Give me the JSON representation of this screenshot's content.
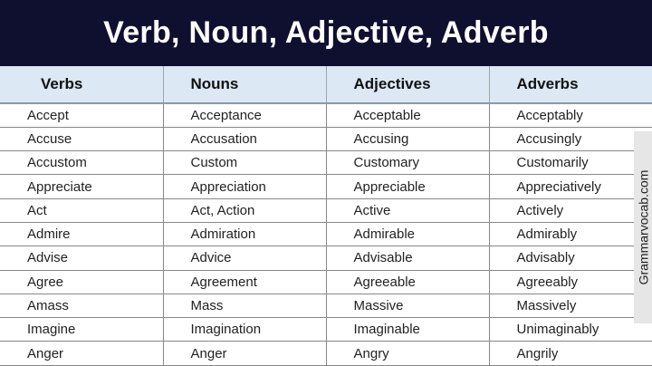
{
  "title": "Verb, Noun, Adjective, Adverb",
  "headers": [
    "Verbs",
    "Nouns",
    "Adjectives",
    "Adverbs"
  ],
  "rows": [
    [
      "Accept",
      "Acceptance",
      "Acceptable",
      "Acceptably"
    ],
    [
      "Accuse",
      "Accusation",
      "Accusing",
      "Accusingly"
    ],
    [
      "Accustom",
      "Custom",
      "Customary",
      "Customarily"
    ],
    [
      "Appreciate",
      "Appreciation",
      "Appreciable",
      "Appreciatively"
    ],
    [
      "Act",
      "Act, Action",
      "Active",
      "Actively"
    ],
    [
      "Admire",
      "Admiration",
      "Admirable",
      "Admirably"
    ],
    [
      "Advise",
      "Advice",
      "Advisable",
      "Advisably"
    ],
    [
      "Agree",
      "Agreement",
      "Agreeable",
      "Agreeably"
    ],
    [
      "Amass",
      "Mass",
      "Massive",
      "Massively"
    ],
    [
      "Imagine",
      "Imagination",
      "Imaginable",
      "Unimaginably"
    ],
    [
      "Anger",
      "Anger",
      "Angry",
      "Angrily"
    ]
  ],
  "watermark": "Grammarvocab.com",
  "colors": {
    "title_bg": "#0f0f30",
    "header_bg": "#dce8f4"
  }
}
